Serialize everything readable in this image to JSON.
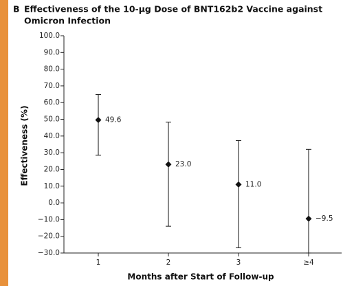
{
  "chart_data": {
    "type": "errorbar",
    "panel": "B",
    "title_lines": [
      "Effectiveness of the 10-μg Dose of BNT162b2 Vaccine against",
      "Omicron Infection"
    ],
    "x_label": "Months after Start of Follow-up",
    "y_label": "Effectiveness (%)",
    "categories": [
      "1",
      "2",
      "3",
      "≥4"
    ],
    "values": [
      49.6,
      23.0,
      11.0,
      -9.5
    ],
    "value_labels": [
      "49.6",
      "23.0",
      "11.0",
      "−9.5"
    ],
    "lower": [
      28.5,
      -14.0,
      -26.9,
      -30.0
    ],
    "upper": [
      64.8,
      48.3,
      37.3,
      32.0
    ],
    "color": "#111111",
    "ylim": [
      -30,
      100
    ],
    "yticks": [
      {
        "value": 100,
        "label": "100.0"
      },
      {
        "value": 90,
        "label": "90.0"
      },
      {
        "value": 80,
        "label": "80.0"
      },
      {
        "value": 70,
        "label": "70.0"
      },
      {
        "value": 60,
        "label": "60.0"
      },
      {
        "value": 50,
        "label": "50.0"
      },
      {
        "value": 40,
        "label": "40.0"
      },
      {
        "value": 30,
        "label": "30.0"
      },
      {
        "value": 20,
        "label": "20.0"
      },
      {
        "value": 10,
        "label": "10.0"
      },
      {
        "value": 0,
        "label": "0.0"
      },
      {
        "value": -10,
        "label": "−10.0"
      },
      {
        "value": -20,
        "label": "−20.0"
      },
      {
        "value": -30,
        "label": "−30.0"
      }
    ]
  }
}
